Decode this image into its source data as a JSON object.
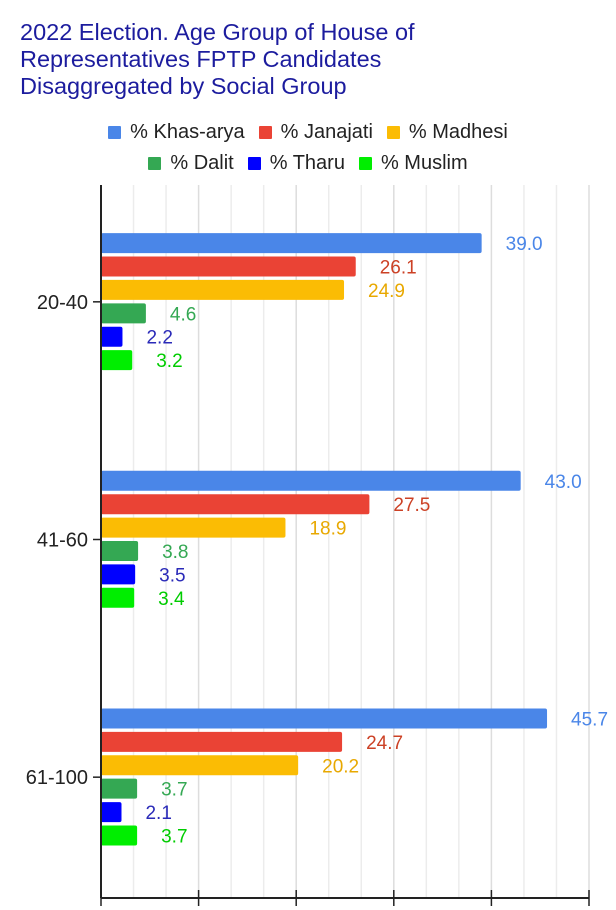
{
  "chart_data": {
    "type": "bar",
    "orientation": "horizontal",
    "title": [
      "2022 Election. Age Group of House of",
      "Representatives FPTP Candidates",
      "Disaggregated by Social Group"
    ],
    "categories": [
      "20-40",
      "41-60",
      "61-100"
    ],
    "series": [
      {
        "name": "% Khas-arya",
        "color": "#4a86e8",
        "label_color": "#4a86e8",
        "values": [
          39.0,
          43.0,
          45.7
        ]
      },
      {
        "name": "% Janajati",
        "color": "#ea4335",
        "label_color": "#cc4125",
        "values": [
          26.1,
          27.5,
          24.7
        ]
      },
      {
        "name": "% Madhesi",
        "color": "#fbbc04",
        "label_color": "#e8a800",
        "values": [
          24.9,
          18.9,
          20.2
        ]
      },
      {
        "name": "% Dalit",
        "color": "#34a853",
        "label_color": "#34a853",
        "values": [
          4.6,
          3.8,
          3.7
        ]
      },
      {
        "name": "% Tharu",
        "color": "#0000ff",
        "label_color": "#2a2ab8",
        "values": [
          2.2,
          3.5,
          2.1
        ]
      },
      {
        "name": "% Muslim",
        "color": "#00ee00",
        "label_color": "#00cc00",
        "values": [
          3.2,
          3.4,
          3.7
        ]
      }
    ],
    "xlim": [
      0,
      50
    ],
    "major_ticks": [
      0,
      10,
      20,
      30,
      40,
      50
    ],
    "minor_divisions": 3,
    "grid": true,
    "data_labels": true,
    "legend_position": "top"
  }
}
